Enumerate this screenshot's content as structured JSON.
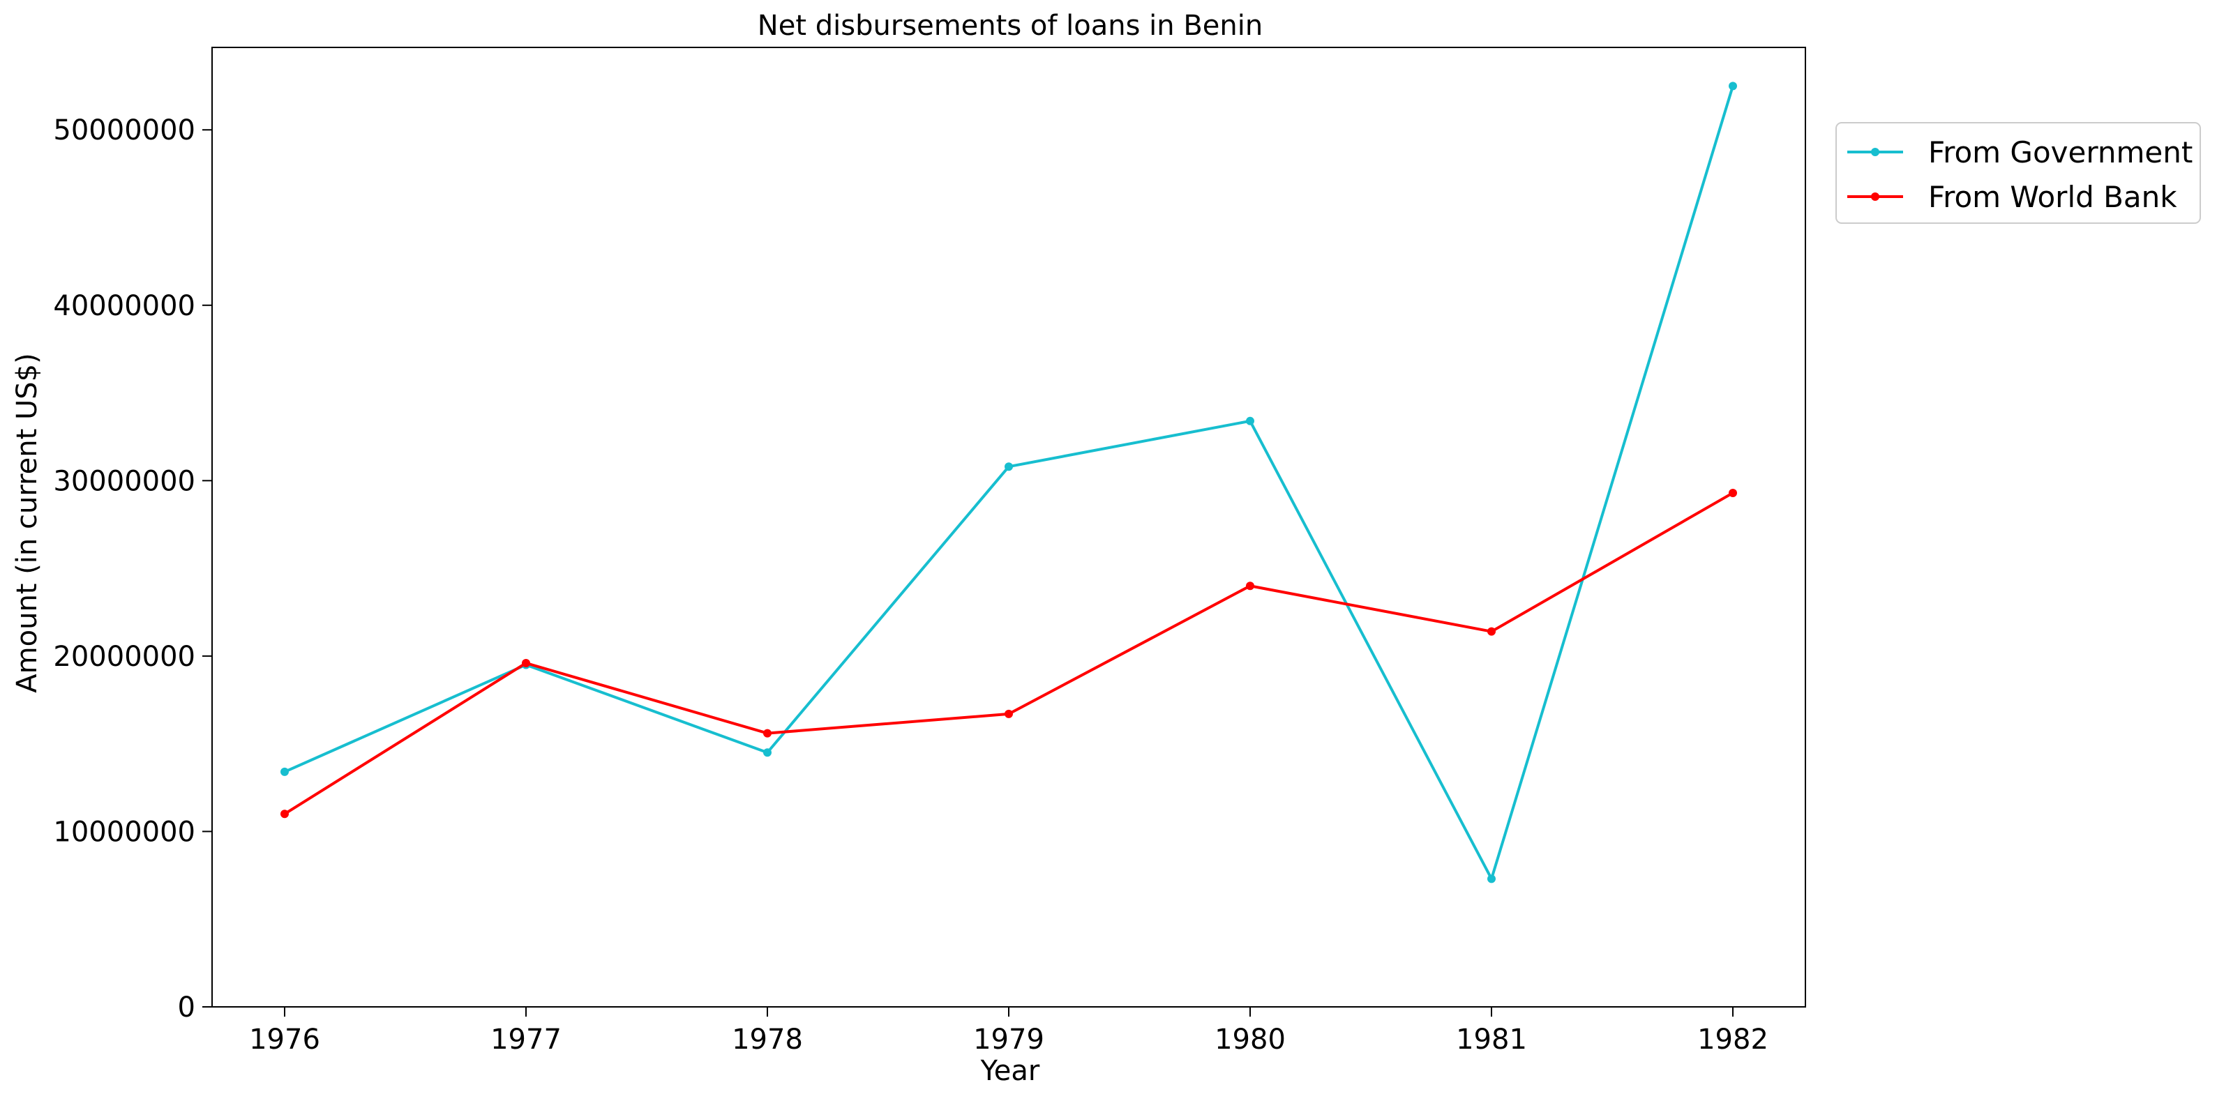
{
  "chart_data": {
    "type": "line",
    "title": "Net disbursements of loans in Benin",
    "xlabel": "Year",
    "ylabel": "Amount (in current US$)",
    "categories": [
      "1976",
      "1977",
      "1978",
      "1979",
      "1980",
      "1981",
      "1982"
    ],
    "ylim": [
      0,
      54700000
    ],
    "yticks": [
      0,
      10000000,
      20000000,
      30000000,
      40000000,
      50000000
    ],
    "ytick_labels": [
      "0",
      "10000000",
      "20000000",
      "30000000",
      "40000000",
      "50000000"
    ],
    "grid": false,
    "legend_position": "upper-right-outside",
    "series": [
      {
        "name": "From Government",
        "color": "#17becf",
        "values": [
          13400000,
          19500000,
          14500000,
          30800000,
          33400000,
          7300000,
          52500000
        ]
      },
      {
        "name": "From World Bank",
        "color": "#ff0000",
        "values": [
          11000000,
          19600000,
          15600000,
          16700000,
          24000000,
          21400000,
          29300000
        ]
      }
    ]
  }
}
